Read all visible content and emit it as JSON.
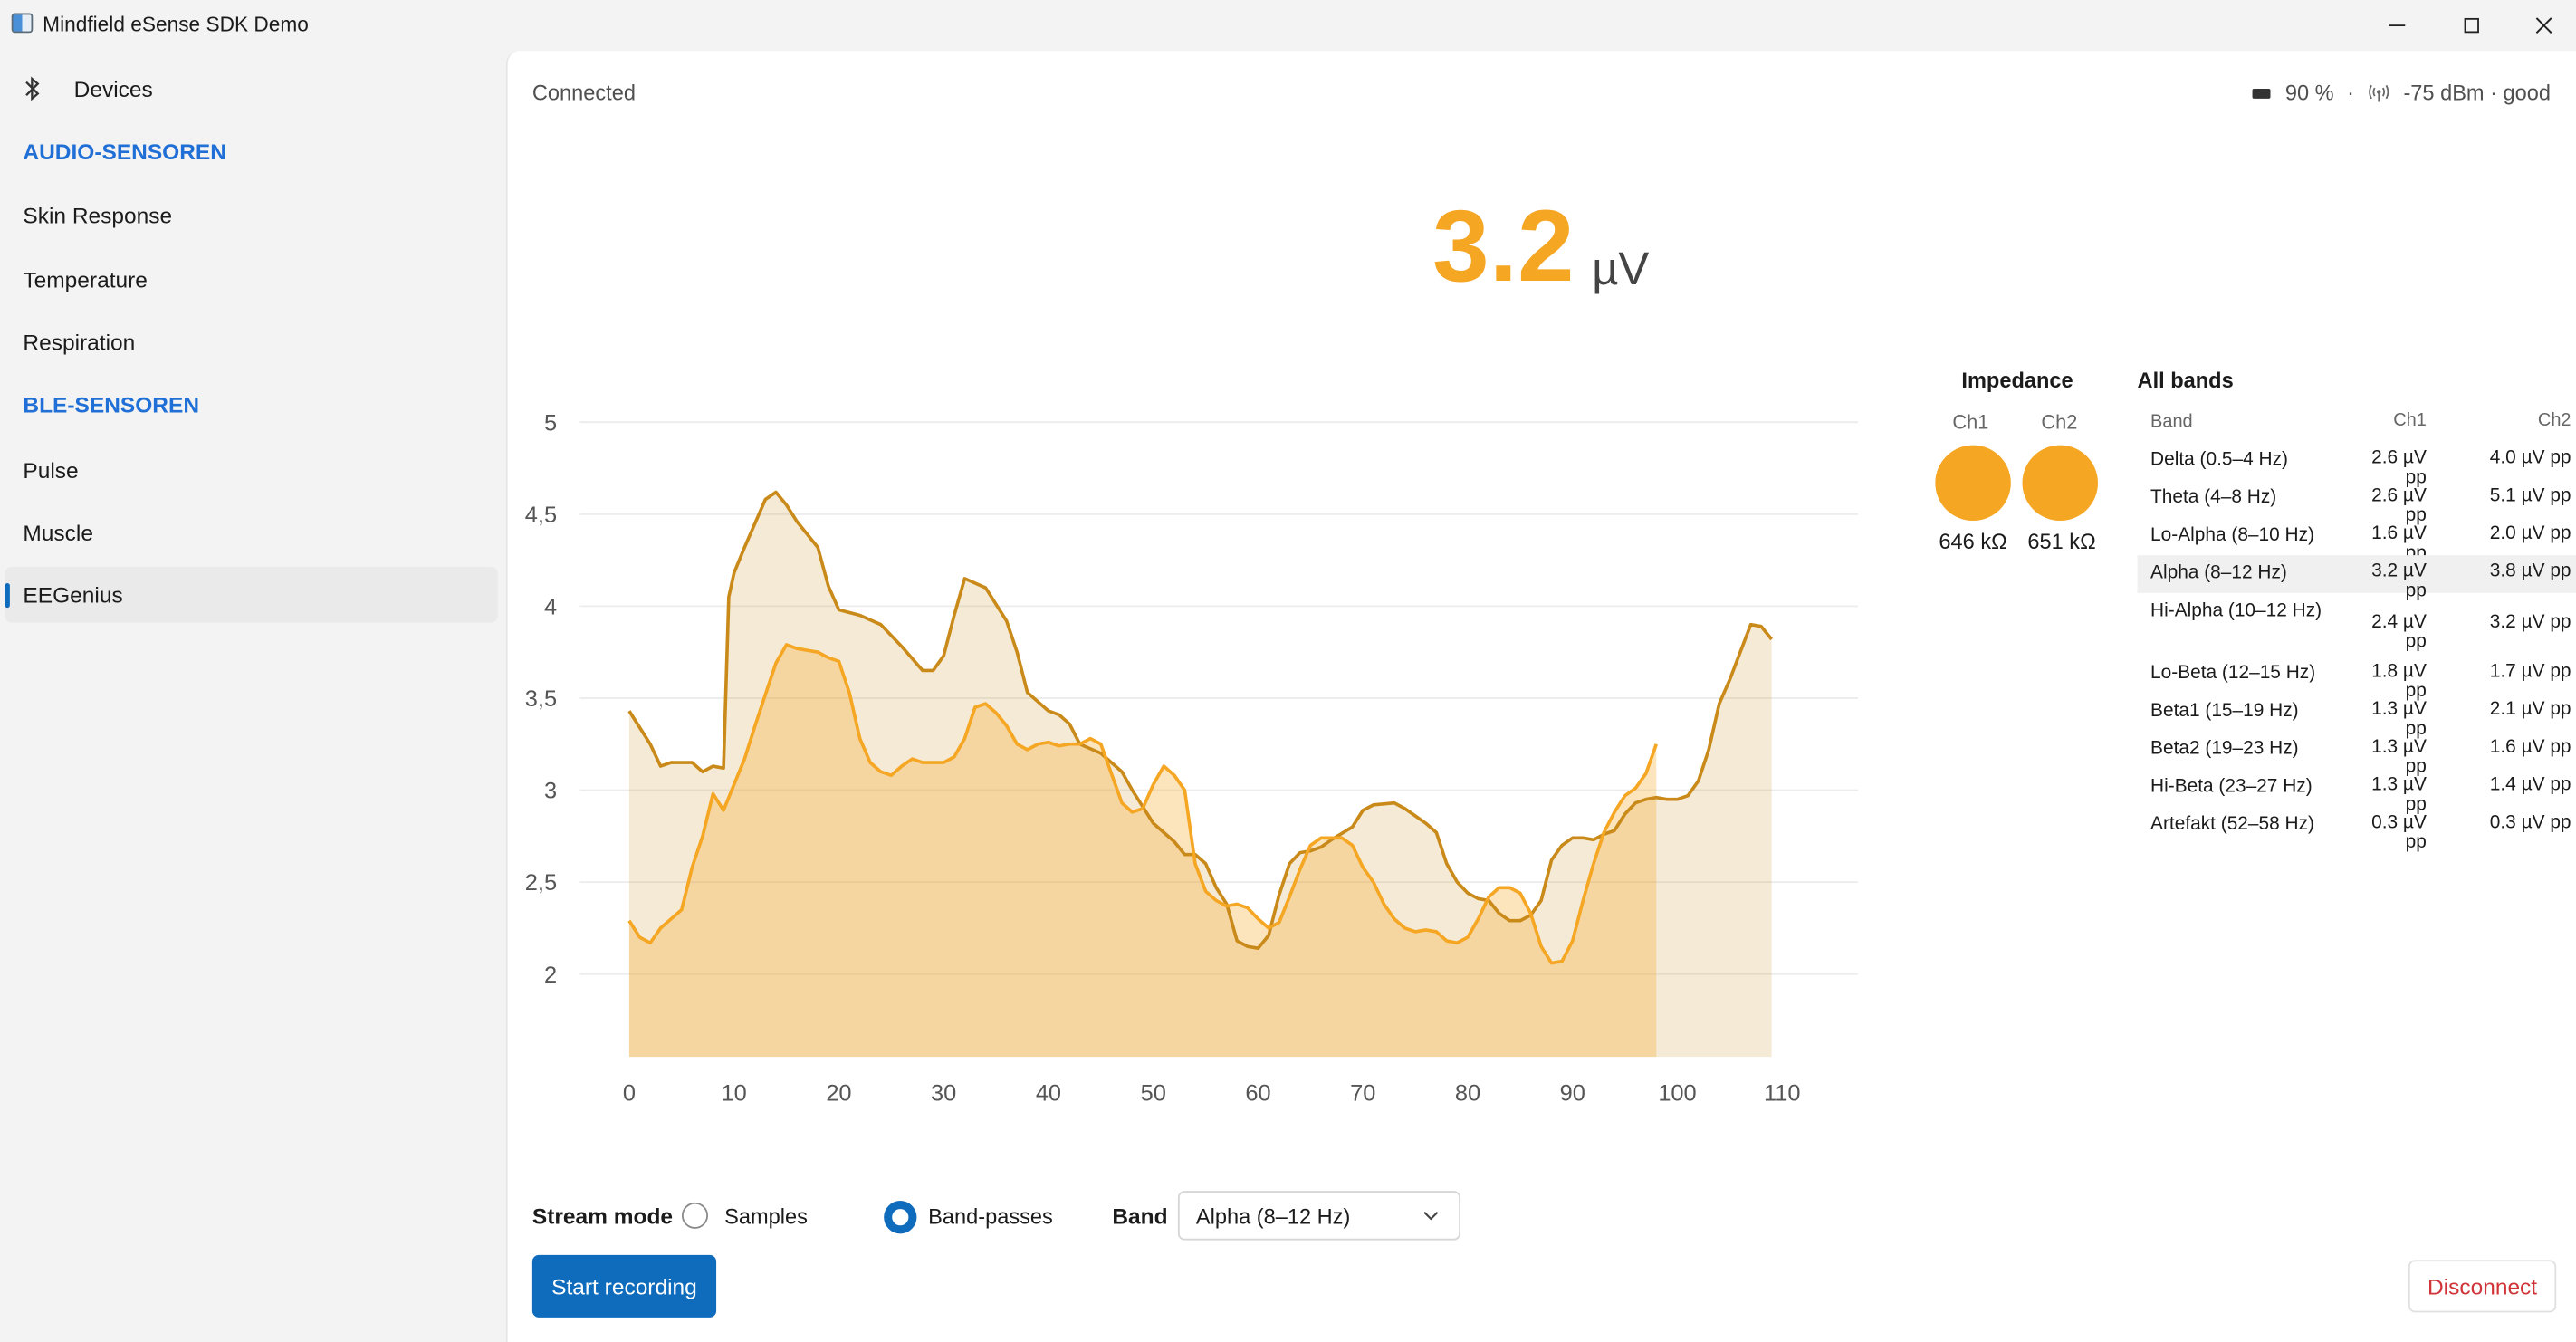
{
  "window": {
    "title": "Mindfield eSense SDK Demo"
  },
  "sidebar": {
    "devices_label": "Devices",
    "audio_header": "AUDIO-SENSOREN",
    "audio_items": [
      "Skin Response",
      "Temperature",
      "Respiration"
    ],
    "ble_header": "BLE-SENSOREN",
    "ble_items": [
      "Pulse",
      "Muscle",
      "EEGenius"
    ],
    "selected": "EEGenius"
  },
  "status": {
    "connection": "Connected",
    "battery": "90 %",
    "separator": "·",
    "signal": "-75 dBm · good"
  },
  "reading": {
    "value": "3.2",
    "unit": "µV"
  },
  "impedance": {
    "title": "Impedance",
    "channels": [
      {
        "label": "Ch1",
        "value": "646 kΩ"
      },
      {
        "label": "Ch2",
        "value": "651 kΩ"
      }
    ]
  },
  "bands": {
    "title": "All bands",
    "headers": [
      "Band",
      "Ch1",
      "Ch2"
    ],
    "rows": [
      {
        "name": "Delta (0.5–4 Hz)",
        "ch1": "2.6 µV pp",
        "ch2": "4.0 µV pp"
      },
      {
        "name": "Theta (4–8 Hz)",
        "ch1": "2.6 µV pp",
        "ch2": "5.1 µV pp"
      },
      {
        "name": "Lo-Alpha (8–10 Hz)",
        "ch1": "1.6 µV pp",
        "ch2": "2.0 µV pp"
      },
      {
        "name": "Alpha (8–12 Hz)",
        "ch1": "3.2 µV pp",
        "ch2": "3.8 µV pp"
      },
      {
        "name": "Hi-Alpha (10–12 Hz)",
        "ch1": "2.4 µV pp",
        "ch2": "3.2 µV pp"
      },
      {
        "name": "Lo-Beta (12–15 Hz)",
        "ch1": "1.8 µV pp",
        "ch2": "1.7 µV pp"
      },
      {
        "name": "Beta1 (15–19 Hz)",
        "ch1": "1.3 µV pp",
        "ch2": "2.1 µV pp"
      },
      {
        "name": "Beta2 (19–23 Hz)",
        "ch1": "1.3 µV pp",
        "ch2": "1.6 µV pp"
      },
      {
        "name": "Hi-Beta (23–27 Hz)",
        "ch1": "1.3 µV pp",
        "ch2": "1.4 µV pp"
      },
      {
        "name": "Artefakt (52–58 Hz)",
        "ch1": "0.3 µV pp",
        "ch2": "0.3 µV pp"
      }
    ],
    "highlighted_row": "Alpha (8–12 Hz)"
  },
  "controls": {
    "stream_mode_label": "Stream mode",
    "options": [
      "Samples",
      "Band-passes"
    ],
    "selected_option": "Band-passes",
    "band_label": "Band",
    "band_value": "Alpha (8–12 Hz)",
    "start_button": "Start recording",
    "disconnect_button": "Disconnect"
  },
  "colors": {
    "accent": "#f5a623",
    "series_dark": "#c98a1a",
    "primary": "#0f6cbd",
    "nav_header": "#1f6fd6",
    "danger": "#d13438"
  },
  "icons": {
    "bluetooth": "bluetooth-icon",
    "battery": "battery-icon",
    "signal": "signal-icon",
    "chevron": "chevron-down-icon"
  },
  "chart_data": {
    "type": "area",
    "title": "",
    "xlabel": "",
    "ylabel": "",
    "xlim": [
      0,
      112
    ],
    "ylim": [
      1.55,
      5
    ],
    "x_ticks": [
      0,
      10,
      20,
      30,
      40,
      50,
      60,
      70,
      80,
      90,
      100,
      110
    ],
    "y_ticks": [
      2,
      2.5,
      3,
      3.5,
      4,
      4.5,
      5
    ],
    "y_tick_labels": [
      "2",
      "2,5",
      "3",
      "3,5",
      "4",
      "4,5",
      "5"
    ],
    "grid": true,
    "series": [
      {
        "color": "#c98a1a",
        "points": [
          [
            0,
            3.43
          ],
          [
            2,
            3.25
          ],
          [
            3,
            3.13
          ],
          [
            4,
            3.15
          ],
          [
            6,
            3.15
          ],
          [
            7,
            3.1
          ],
          [
            8,
            3.13
          ],
          [
            9,
            3.12
          ],
          [
            9.5,
            4.05
          ],
          [
            10,
            4.18
          ],
          [
            11,
            4.32
          ],
          [
            13,
            4.58
          ],
          [
            14,
            4.62
          ],
          [
            15,
            4.55
          ],
          [
            16,
            4.46
          ],
          [
            18,
            4.32
          ],
          [
            19,
            4.11
          ],
          [
            20,
            3.98
          ],
          [
            22,
            3.95
          ],
          [
            24,
            3.9
          ],
          [
            26,
            3.78
          ],
          [
            28,
            3.65
          ],
          [
            29,
            3.65
          ],
          [
            30,
            3.73
          ],
          [
            31,
            3.95
          ],
          [
            32,
            4.15
          ],
          [
            34,
            4.1
          ],
          [
            36,
            3.92
          ],
          [
            37,
            3.75
          ],
          [
            38,
            3.53
          ],
          [
            40,
            3.43
          ],
          [
            41,
            3.41
          ],
          [
            42,
            3.36
          ],
          [
            43,
            3.25
          ],
          [
            45,
            3.2
          ],
          [
            47,
            3.1
          ],
          [
            48,
            3.0
          ],
          [
            50,
            2.82
          ],
          [
            52,
            2.72
          ],
          [
            53,
            2.65
          ],
          [
            54,
            2.65
          ],
          [
            55,
            2.6
          ],
          [
            56,
            2.47
          ],
          [
            57,
            2.38
          ],
          [
            58,
            2.18
          ],
          [
            59,
            2.15
          ],
          [
            60,
            2.14
          ],
          [
            61,
            2.21
          ],
          [
            62,
            2.43
          ],
          [
            63,
            2.6
          ],
          [
            64,
            2.66
          ],
          [
            65,
            2.67
          ],
          [
            66,
            2.69
          ],
          [
            67,
            2.73
          ],
          [
            69,
            2.8
          ],
          [
            70,
            2.89
          ],
          [
            71,
            2.92
          ],
          [
            73,
            2.93
          ],
          [
            74,
            2.9
          ],
          [
            75,
            2.86
          ],
          [
            76,
            2.82
          ],
          [
            77,
            2.77
          ],
          [
            78,
            2.6
          ],
          [
            79,
            2.5
          ],
          [
            80,
            2.44
          ],
          [
            81,
            2.41
          ],
          [
            82,
            2.4
          ],
          [
            83,
            2.33
          ],
          [
            84,
            2.29
          ],
          [
            85,
            2.29
          ],
          [
            86,
            2.32
          ],
          [
            87,
            2.4
          ],
          [
            88,
            2.62
          ],
          [
            89,
            2.7
          ],
          [
            90,
            2.74
          ],
          [
            91,
            2.74
          ],
          [
            92,
            2.73
          ],
          [
            93,
            2.76
          ],
          [
            94,
            2.78
          ],
          [
            95,
            2.87
          ],
          [
            96,
            2.93
          ],
          [
            97,
            2.95
          ],
          [
            98,
            2.96
          ],
          [
            99,
            2.95
          ],
          [
            100,
            2.95
          ],
          [
            101,
            2.97
          ],
          [
            102,
            3.05
          ],
          [
            103,
            3.22
          ],
          [
            104,
            3.47
          ],
          [
            105,
            3.6
          ],
          [
            106,
            3.75
          ],
          [
            107,
            3.9
          ],
          [
            108,
            3.89
          ],
          [
            109,
            3.82
          ]
        ]
      },
      {
        "color": "#f5a623",
        "points": [
          [
            0,
            2.29
          ],
          [
            1,
            2.2
          ],
          [
            2,
            2.17
          ],
          [
            3,
            2.25
          ],
          [
            5,
            2.35
          ],
          [
            6,
            2.58
          ],
          [
            7,
            2.75
          ],
          [
            8,
            2.98
          ],
          [
            9,
            2.89
          ],
          [
            10,
            3.03
          ],
          [
            11,
            3.17
          ],
          [
            12,
            3.35
          ],
          [
            13,
            3.52
          ],
          [
            14,
            3.69
          ],
          [
            15,
            3.79
          ],
          [
            16,
            3.77
          ],
          [
            18,
            3.75
          ],
          [
            19,
            3.72
          ],
          [
            20,
            3.7
          ],
          [
            21,
            3.53
          ],
          [
            22,
            3.28
          ],
          [
            23,
            3.15
          ],
          [
            24,
            3.1
          ],
          [
            25,
            3.08
          ],
          [
            26,
            3.13
          ],
          [
            27,
            3.17
          ],
          [
            28,
            3.15
          ],
          [
            30,
            3.15
          ],
          [
            31,
            3.18
          ],
          [
            32,
            3.28
          ],
          [
            33,
            3.45
          ],
          [
            34,
            3.47
          ],
          [
            35,
            3.42
          ],
          [
            36,
            3.35
          ],
          [
            37,
            3.25
          ],
          [
            38,
            3.22
          ],
          [
            39,
            3.25
          ],
          [
            40,
            3.26
          ],
          [
            41,
            3.24
          ],
          [
            42,
            3.25
          ],
          [
            43,
            3.25
          ],
          [
            44,
            3.28
          ],
          [
            45,
            3.25
          ],
          [
            46,
            3.09
          ],
          [
            47,
            2.93
          ],
          [
            48,
            2.88
          ],
          [
            49,
            2.9
          ],
          [
            50,
            3.03
          ],
          [
            51,
            3.13
          ],
          [
            52,
            3.08
          ],
          [
            53,
            3.0
          ],
          [
            54,
            2.6
          ],
          [
            55,
            2.45
          ],
          [
            56,
            2.4
          ],
          [
            57,
            2.37
          ],
          [
            58,
            2.38
          ],
          [
            59,
            2.36
          ],
          [
            60,
            2.3
          ],
          [
            61,
            2.25
          ],
          [
            62,
            2.28
          ],
          [
            63,
            2.42
          ],
          [
            64,
            2.57
          ],
          [
            65,
            2.7
          ],
          [
            66,
            2.74
          ],
          [
            68,
            2.74
          ],
          [
            69,
            2.7
          ],
          [
            70,
            2.58
          ],
          [
            71,
            2.5
          ],
          [
            72,
            2.38
          ],
          [
            73,
            2.3
          ],
          [
            74,
            2.25
          ],
          [
            75,
            2.23
          ],
          [
            76,
            2.24
          ],
          [
            77,
            2.23
          ],
          [
            78,
            2.18
          ],
          [
            79,
            2.17
          ],
          [
            80,
            2.2
          ],
          [
            81,
            2.3
          ],
          [
            82,
            2.42
          ],
          [
            83,
            2.47
          ],
          [
            84,
            2.47
          ],
          [
            85,
            2.44
          ],
          [
            86,
            2.33
          ],
          [
            87,
            2.15
          ],
          [
            88,
            2.06
          ],
          [
            89,
            2.07
          ],
          [
            90,
            2.18
          ],
          [
            91,
            2.4
          ],
          [
            92,
            2.6
          ],
          [
            93,
            2.77
          ],
          [
            94,
            2.88
          ],
          [
            95,
            2.97
          ],
          [
            96,
            3.01
          ],
          [
            97,
            3.09
          ],
          [
            98,
            3.25
          ]
        ]
      }
    ]
  }
}
